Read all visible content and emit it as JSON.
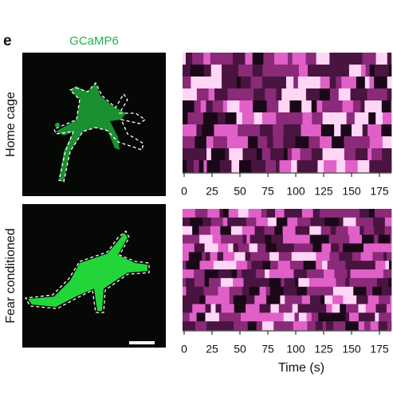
{
  "panel_label": "e",
  "image_title": "GCaMP6",
  "rows": [
    {
      "label": "Home cage"
    },
    {
      "label": "Fear conditioned"
    }
  ],
  "x_axis": {
    "label": "Time (s)",
    "xlim": [
      0,
      186
    ],
    "xticks": [
      0,
      25,
      50,
      75,
      100,
      125,
      150,
      175
    ]
  }
}
